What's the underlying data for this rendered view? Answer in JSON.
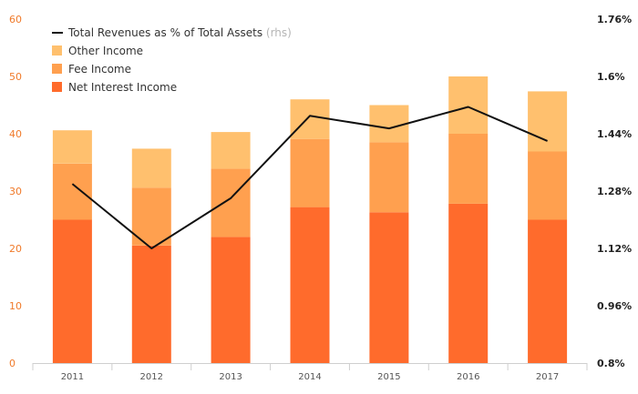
{
  "chart_data": {
    "type": "bar",
    "stacked": true,
    "categories": [
      "2011",
      "2012",
      "2013",
      "2014",
      "2015",
      "2016",
      "2017"
    ],
    "series": [
      {
        "name": "Net Interest Income",
        "values": [
          25,
          20.5,
          22,
          27.2,
          26.3,
          27.8,
          25
        ],
        "color": "#ff6b2c"
      },
      {
        "name": "Fee Income",
        "values": [
          9.8,
          10.1,
          11.9,
          11.9,
          12.2,
          12.2,
          11.9
        ],
        "color": "#ffa04f"
      },
      {
        "name": "Other Income",
        "values": [
          5.8,
          6.8,
          6.4,
          6.9,
          6.5,
          10.0,
          10.5
        ],
        "color": "#ffc06e"
      }
    ],
    "line_series": {
      "name": "Total Revenues as % of Total Assets",
      "note": "(rhs)",
      "values": [
        1.3,
        1.12,
        1.26,
        1.49,
        1.455,
        1.515,
        1.42
      ],
      "color": "#111111"
    },
    "y_left": {
      "ticks": [
        "0",
        "10",
        "20",
        "30",
        "40",
        "50",
        "60"
      ],
      "min": 0,
      "max": 60
    },
    "y_right": {
      "ticks": [
        "0.8%",
        "0.96%",
        "1.12%",
        "1.28%",
        "1.44%",
        "1.6%",
        "1.76%"
      ],
      "min": 0.8,
      "max": 1.76
    },
    "legend_placement": "top-left",
    "grid": false
  }
}
